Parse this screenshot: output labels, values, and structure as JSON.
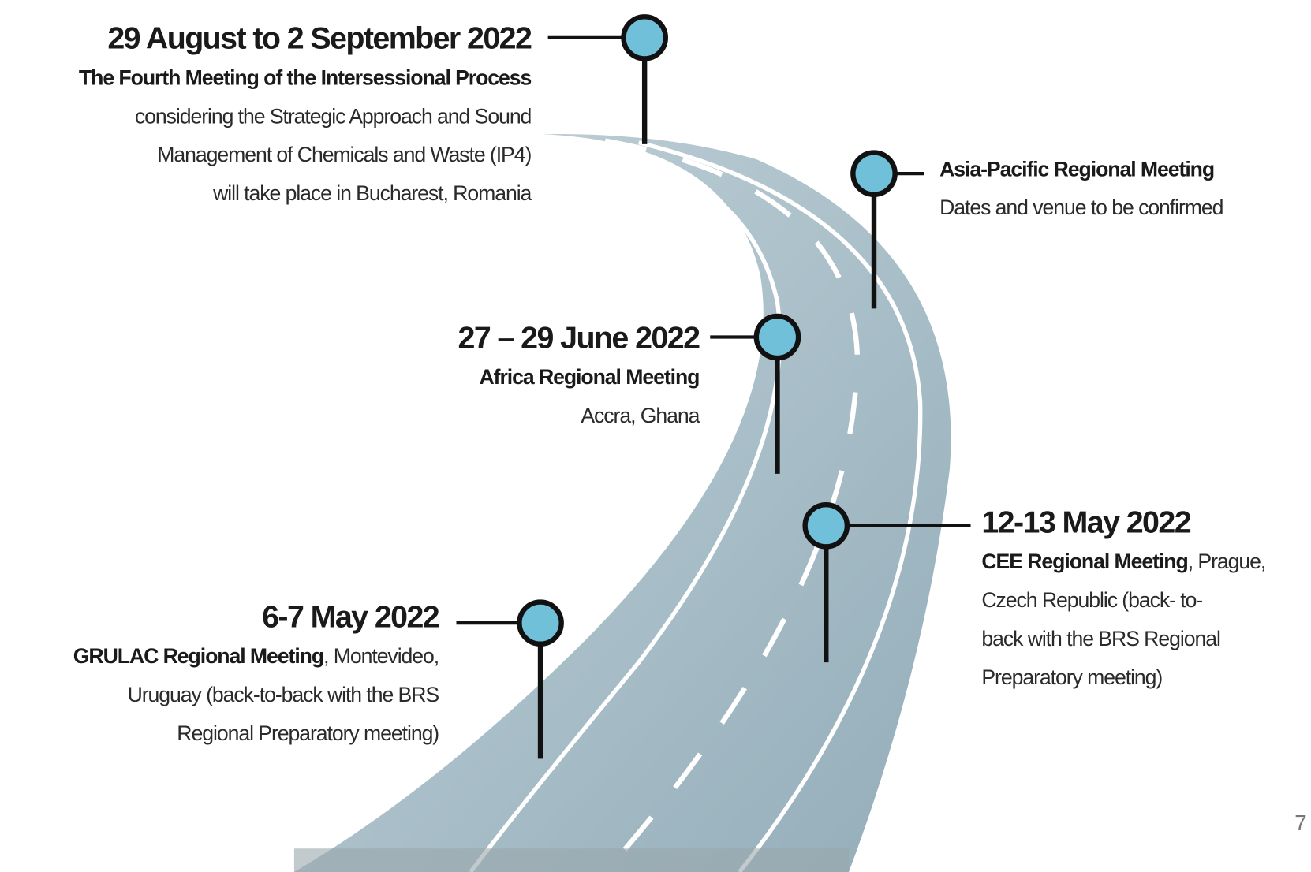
{
  "milestones": [
    {
      "date": "29 August to 2 September 2022",
      "title": "The Fourth Meeting of the Intersessional Process",
      "title_suffix": "",
      "lines": [
        "considering the Strategic Approach and Sound",
        "Management of Chemicals and Waste (IP4)",
        "will take place in Bucharest, Romania"
      ]
    },
    {
      "title": "Asia-Pacific Regional Meeting",
      "title_suffix": "",
      "lines": [
        "Dates and venue to be confirmed"
      ]
    },
    {
      "date": "27 – 29 June 2022",
      "title": "Africa Regional Meeting",
      "title_suffix": "",
      "lines": [
        "Accra, Ghana"
      ]
    },
    {
      "date": "12-13 May 2022",
      "title": "CEE Regional Meeting",
      "title_suffix": ", Prague,",
      "lines": [
        "Czech Republic (back- to-",
        "back with the BRS Regional",
        "Preparatory meeting)"
      ]
    },
    {
      "date": "6-7 May 2022",
      "title": "GRULAC Regional Meeting",
      "title_suffix": ", Montevideo,",
      "lines": [
        "Uruguay (back-to-back with the BRS",
        "Regional Preparatory meeting)"
      ]
    }
  ],
  "page_number": "7"
}
